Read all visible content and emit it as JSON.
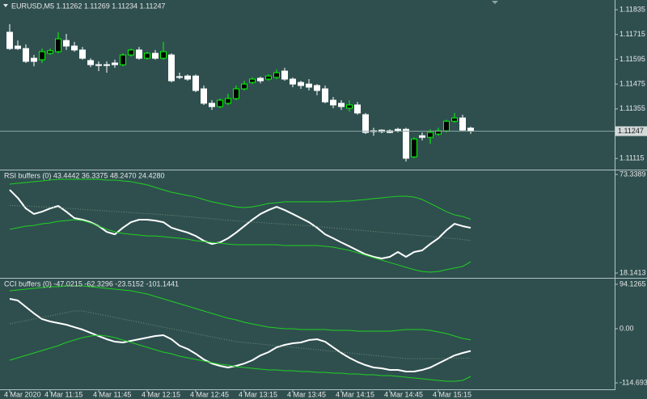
{
  "chart_data": [
    {
      "type": "candlestick",
      "title": "EURUSD,M5 1.11262 1.11269 1.11234 1.11247",
      "categories": [
        "4 Mar 2020",
        null,
        null,
        null,
        null,
        "4 Mar 11:15",
        null,
        null,
        null,
        null,
        null,
        "4 Mar 11:45",
        null,
        null,
        null,
        null,
        null,
        "4 Mar 12:15",
        null,
        null,
        null,
        null,
        null,
        "4 Mar 12:45",
        null,
        null,
        null,
        null,
        null,
        "4 Mar 13:15",
        null,
        null,
        null,
        null,
        null,
        "4 Mar 13:45",
        null,
        null,
        null,
        null,
        null,
        "4 Mar 14:15",
        null,
        null,
        null,
        null,
        null,
        "4 Mar 14:45",
        null,
        null,
        null,
        null,
        null,
        "4 Mar 15:15",
        null,
        null,
        null,
        null
      ],
      "open": [
        1.11726,
        1.11659,
        1.11647,
        1.116,
        1.11593,
        1.11624,
        1.11632,
        1.11686,
        1.11659,
        1.1164,
        1.11589,
        1.11569,
        1.11569,
        1.11577,
        1.11569,
        1.11616,
        1.1164,
        1.116,
        1.11624,
        1.116,
        1.11616,
        1.11511,
        1.11514,
        1.11514,
        1.11452,
        1.11382,
        1.11366,
        1.11382,
        1.11405,
        1.11452,
        1.11483,
        1.11503,
        1.11499,
        1.11507,
        1.11538,
        1.11499,
        1.11483,
        1.11475,
        1.11468,
        1.11452,
        1.11397,
        1.11382,
        1.11358,
        1.11374,
        1.11327,
        1.11249,
        1.11252,
        1.11249,
        1.11256,
        1.11256,
        1.11123,
        1.11225,
        1.11217,
        1.11233,
        1.11249,
        1.11295,
        1.11311,
        1.11262
      ],
      "high": [
        1.11765,
        1.11686,
        1.11667,
        1.11616,
        1.11647,
        1.11647,
        1.11726,
        1.11718,
        1.11679,
        1.11655,
        1.116,
        1.11585,
        1.11585,
        1.11593,
        1.11624,
        1.11647,
        1.11655,
        1.11632,
        1.1164,
        1.11679,
        1.11624,
        1.1153,
        1.11522,
        1.11522,
        1.11468,
        1.11397,
        1.11405,
        1.11428,
        1.11468,
        1.11491,
        1.11507,
        1.11511,
        1.11522,
        1.11546,
        1.11554,
        1.11507,
        1.11491,
        1.11499,
        1.11475,
        1.11468,
        1.11413,
        1.11397,
        1.11397,
        1.11389,
        1.11335,
        1.11264,
        1.11256,
        1.11256,
        1.11264,
        1.11264,
        1.11217,
        1.11241,
        1.11256,
        1.11264,
        1.11303,
        1.11335,
        1.11327,
        1.11269
      ],
      "low": [
        1.1164,
        1.1164,
        1.11577,
        1.11561,
        1.11577,
        1.11616,
        1.11624,
        1.1164,
        1.11632,
        1.11593,
        1.11557,
        1.11538,
        1.1153,
        1.11554,
        1.11561,
        1.11608,
        1.11593,
        1.11593,
        1.11593,
        1.11593,
        1.11483,
        1.11499,
        1.11491,
        1.11436,
        1.11374,
        1.1135,
        1.11358,
        1.11374,
        1.11397,
        1.11444,
        1.11475,
        1.11479,
        1.11491,
        1.11499,
        1.11491,
        1.1146,
        1.11452,
        1.11444,
        1.11421,
        1.11382,
        1.11358,
        1.1135,
        1.11342,
        1.11327,
        1.11233,
        1.11225,
        1.11237,
        1.11237,
        1.11241,
        1.111,
        1.11116,
        1.11202,
        1.11186,
        1.11225,
        1.11241,
        1.11288,
        1.11249,
        1.11234
      ],
      "close": [
        1.11647,
        1.11647,
        1.11585,
        1.11585,
        1.11632,
        1.11636,
        1.11694,
        1.11659,
        1.1164,
        1.116,
        1.11569,
        1.11565,
        1.11569,
        1.11569,
        1.11616,
        1.1164,
        1.116,
        1.11624,
        1.116,
        1.11632,
        1.11491,
        1.11511,
        1.11499,
        1.11444,
        1.11382,
        1.11366,
        1.11397,
        1.11405,
        1.11452,
        1.11475,
        1.11499,
        1.11491,
        1.11514,
        1.1153,
        1.11499,
        1.11475,
        1.11468,
        1.1146,
        1.11444,
        1.11389,
        1.11374,
        1.11366,
        1.11374,
        1.11335,
        1.11241,
        1.11249,
        1.11245,
        1.11241,
        1.11249,
        1.11116,
        1.11209,
        1.11217,
        1.11241,
        1.11249,
        1.11295,
        1.11311,
        1.11252,
        1.11247
      ],
      "up_color": "#000000",
      "up_edge": "#00ff00",
      "down_color": "#ffffff",
      "down_edge": "#ffffff",
      "ylim": [
        1.11061,
        1.11882
      ],
      "yticks": [
        1.11835,
        1.11715,
        1.11595,
        1.11475,
        1.11355,
        1.11115
      ],
      "current_price": 1.11247,
      "current_price_color": "#8fa3a3"
    },
    {
      "type": "line",
      "title": "RSI buffers (0) 43.4442 36.3375 48.2470 24.4280",
      "series": [
        {
          "color": "#ffffff",
          "style": "solid",
          "values": [
            64.7,
            60.2,
            54.3,
            51.2,
            52.5,
            54.3,
            55.7,
            52.5,
            48.9,
            48.0,
            46.6,
            44.4,
            41.2,
            39.8,
            43.5,
            46.6,
            48.0,
            48.0,
            47.5,
            46.6,
            43.5,
            42.1,
            40.8,
            38.9,
            36.2,
            34.4,
            35.3,
            37.6,
            40.8,
            44.4,
            48.0,
            51.2,
            53.4,
            55.2,
            53.4,
            51.2,
            48.9,
            46.6,
            43.5,
            39.8,
            37.6,
            35.3,
            33.1,
            30.8,
            28.6,
            27.2,
            26.3,
            27.2,
            29.9,
            27.2,
            29.9,
            30.8,
            34.4,
            37.6,
            42.1,
            45.7,
            44.4,
            43.4442
          ]
        },
        {
          "color": "#6f8f7a",
          "style": "dotted",
          "values": [
            56.0,
            55.8,
            55.6,
            55.4,
            55.2,
            55.0,
            54.7,
            54.4,
            54.1,
            53.8,
            53.5,
            53.2,
            52.9,
            52.6,
            52.3,
            52.0,
            51.7,
            51.4,
            51.1,
            50.8,
            50.5,
            50.1,
            49.7,
            49.3,
            48.9,
            48.5,
            48.1,
            47.7,
            47.3,
            47.0,
            46.7,
            46.4,
            46.1,
            45.8,
            45.5,
            45.2,
            44.9,
            44.6,
            44.2,
            43.8,
            43.4,
            43.0,
            42.6,
            42.2,
            41.8,
            41.4,
            41.0,
            40.6,
            40.2,
            39.8,
            39.4,
            39.0,
            38.6,
            38.2,
            37.8,
            37.4,
            36.9,
            36.3375
          ]
        },
        {
          "color": "#1fd11f",
          "style": "solid",
          "values": [
            67.9,
            68.4,
            68.8,
            69.3,
            69.7,
            70.2,
            70.6,
            70.6,
            70.6,
            70.6,
            70.6,
            70.6,
            70.2,
            70.2,
            69.7,
            69.3,
            68.4,
            67.5,
            66.1,
            64.7,
            63.4,
            62.5,
            61.6,
            60.7,
            59.3,
            58.0,
            57.1,
            56.1,
            55.2,
            54.8,
            55.2,
            56.1,
            57.1,
            57.5,
            58.0,
            58.0,
            58.0,
            58.0,
            58.0,
            58.0,
            58.0,
            58.4,
            58.4,
            58.9,
            59.3,
            59.8,
            60.2,
            60.7,
            61.1,
            61.1,
            60.7,
            59.3,
            57.1,
            54.8,
            52.5,
            50.7,
            49.8,
            48.247
          ]
        },
        {
          "color": "#1fd11f",
          "style": "solid",
          "values": [
            42.6,
            43.5,
            44.4,
            44.8,
            45.7,
            46.2,
            47.1,
            47.5,
            48.0,
            47.5,
            46.2,
            44.4,
            42.6,
            41.2,
            40.3,
            39.8,
            39.4,
            38.9,
            38.9,
            38.5,
            38.0,
            37.6,
            37.1,
            36.2,
            35.8,
            35.3,
            34.9,
            34.4,
            34.0,
            34.0,
            34.0,
            34.0,
            34.0,
            34.0,
            33.5,
            33.5,
            33.5,
            33.5,
            33.5,
            33.1,
            32.6,
            31.7,
            30.8,
            29.5,
            28.1,
            26.7,
            25.4,
            24.0,
            22.7,
            21.3,
            20.0,
            19.0,
            18.6,
            19.0,
            20.0,
            20.9,
            21.8,
            24.428
          ]
        }
      ],
      "ylim": [
        15.43,
        75.6
      ],
      "yticks": [
        18.1413,
        73.3389
      ]
    },
    {
      "type": "line",
      "title": "CCI buffers (0) -47.0215 -62.3296 -23.5152 -101.1441",
      "series": [
        {
          "color": "#ffffff",
          "style": "solid",
          "values": [
            63.3,
            59.9,
            46.2,
            32.5,
            20.5,
            15.4,
            12.0,
            8.6,
            3.4,
            -1.7,
            -8.6,
            -15.4,
            -22.2,
            -27.4,
            -29.1,
            -25.7,
            -22.2,
            -18.8,
            -15.4,
            -13.7,
            -22.2,
            -35.9,
            -42.8,
            -53.0,
            -65.0,
            -73.6,
            -78.7,
            -82.1,
            -78.7,
            -73.6,
            -66.7,
            -56.5,
            -49.6,
            -39.4,
            -34.2,
            -30.8,
            -29.1,
            -24.0,
            -22.2,
            -27.4,
            -39.4,
            -51.3,
            -61.6,
            -70.2,
            -77.0,
            -82.1,
            -83.8,
            -87.3,
            -87.3,
            -90.7,
            -90.7,
            -87.3,
            -82.1,
            -73.6,
            -65.0,
            -56.5,
            -51.3,
            -47.0215
          ]
        },
        {
          "color": "#6f8f7a",
          "style": "dotted",
          "values": [
            10.3,
            13.7,
            17.1,
            20.5,
            23.9,
            27.4,
            30.8,
            34.2,
            37.6,
            37.6,
            34.2,
            30.8,
            27.4,
            23.9,
            20.5,
            17.1,
            13.7,
            10.3,
            6.8,
            3.4,
            0.0,
            -3.4,
            -6.8,
            -10.3,
            -13.7,
            -17.1,
            -20.5,
            -23.9,
            -27.4,
            -29.1,
            -30.8,
            -32.5,
            -34.2,
            -35.9,
            -37.6,
            -39.4,
            -41.1,
            -42.8,
            -44.5,
            -46.2,
            -47.9,
            -49.6,
            -51.3,
            -53.0,
            -54.7,
            -56.5,
            -58.2,
            -59.9,
            -61.6,
            -63.3,
            -63.3,
            -63.3,
            -63.3,
            -63.3,
            -63.0,
            -62.7,
            -62.5,
            -62.3296
          ]
        },
        {
          "color": "#1fd11f",
          "style": "solid",
          "values": [
            80.4,
            82.1,
            83.8,
            85.6,
            87.3,
            89.0,
            89.0,
            90.7,
            90.7,
            90.7,
            89.0,
            87.3,
            85.6,
            83.8,
            82.1,
            80.4,
            77.0,
            73.6,
            68.4,
            63.3,
            58.2,
            53.0,
            47.9,
            42.8,
            37.6,
            32.5,
            27.4,
            22.2,
            18.8,
            13.7,
            10.3,
            6.8,
            3.4,
            1.7,
            0.0,
            0.0,
            -1.7,
            -1.7,
            -1.7,
            -1.7,
            -3.4,
            -3.4,
            -3.4,
            -5.1,
            -5.1,
            -5.1,
            -5.1,
            -5.1,
            -3.4,
            -1.7,
            -1.7,
            -1.7,
            -3.4,
            -6.8,
            -10.3,
            -15.4,
            -20.5,
            -23.5152
          ]
        },
        {
          "color": "#1fd11f",
          "style": "solid",
          "values": [
            -66.7,
            -61.6,
            -56.5,
            -51.3,
            -46.2,
            -41.1,
            -35.9,
            -29.1,
            -24.0,
            -18.8,
            -15.4,
            -13.7,
            -15.4,
            -18.8,
            -24.0,
            -29.1,
            -34.2,
            -39.4,
            -44.5,
            -49.6,
            -53.0,
            -58.2,
            -61.6,
            -65.0,
            -68.4,
            -71.9,
            -75.3,
            -77.0,
            -80.4,
            -82.1,
            -83.8,
            -85.6,
            -87.3,
            -87.3,
            -89.0,
            -89.0,
            -90.7,
            -90.7,
            -92.4,
            -92.4,
            -94.1,
            -94.1,
            -95.8,
            -95.8,
            -97.5,
            -97.5,
            -99.2,
            -99.2,
            -100.9,
            -102.7,
            -104.4,
            -106.1,
            -107.8,
            -109.5,
            -111.2,
            -111.2,
            -109.5,
            -101.1441
          ]
        }
      ],
      "ylim": [
        -128.3,
        106.1
      ],
      "yticks": [
        94.1265,
        {
          "value": 0,
          "label": "0.00"
        },
        -114.693
      ]
    }
  ]
}
